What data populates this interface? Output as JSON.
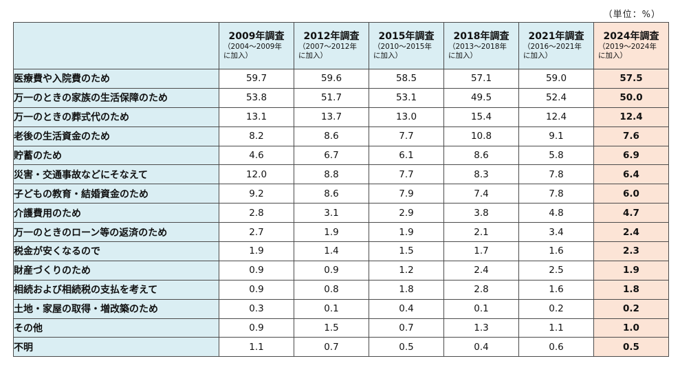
{
  "unit_note": "（単位：%）",
  "columns": [
    {
      "title": "2009年調査",
      "range": "（2004～2009年",
      "join": "に加入）"
    },
    {
      "title": "2012年調査",
      "range": "（2007～2012年",
      "join": "に加入）"
    },
    {
      "title": "2015年調査",
      "range": "（2010～2015年",
      "join": "に加入）"
    },
    {
      "title": "2018年調査",
      "range": "（2013～2018年",
      "join": "に加入）"
    },
    {
      "title": "2021年調査",
      "range": "（2016～2021年",
      "join": "に加入）"
    },
    {
      "title": "2024年調査",
      "range": "（2019～2024年",
      "join": "に加入）"
    }
  ],
  "rows": [
    {
      "label": "医療費や入院費のため",
      "values": [
        "59.7",
        "59.6",
        "58.5",
        "57.1",
        "59.0",
        "57.5"
      ]
    },
    {
      "label": "万一のときの家族の生活保障のため",
      "values": [
        "53.8",
        "51.7",
        "53.1",
        "49.5",
        "52.4",
        "50.0"
      ]
    },
    {
      "label": "万一のときの葬式代のため",
      "values": [
        "13.1",
        "13.7",
        "13.0",
        "15.4",
        "12.4",
        "12.4"
      ]
    },
    {
      "label": "老後の生活資金のため",
      "values": [
        "8.2",
        "8.6",
        "7.7",
        "10.8",
        "9.1",
        "7.6"
      ]
    },
    {
      "label": "貯蓄のため",
      "values": [
        "4.6",
        "6.7",
        "6.1",
        "8.6",
        "5.8",
        "6.9"
      ]
    },
    {
      "label": "災害・交通事故などにそなえて",
      "values": [
        "12.0",
        "8.8",
        "7.7",
        "8.3",
        "7.8",
        "6.4"
      ]
    },
    {
      "label": "子どもの教育・結婚資金のため",
      "values": [
        "9.2",
        "8.6",
        "7.9",
        "7.4",
        "7.8",
        "6.0"
      ]
    },
    {
      "label": "介護費用のため",
      "values": [
        "2.8",
        "3.1",
        "2.9",
        "3.8",
        "4.8",
        "4.7"
      ]
    },
    {
      "label": "万一のときのローン等の返済のため",
      "values": [
        "2.7",
        "1.9",
        "1.9",
        "2.1",
        "3.4",
        "2.4"
      ]
    },
    {
      "label": "税金が安くなるので",
      "values": [
        "1.9",
        "1.4",
        "1.5",
        "1.7",
        "1.6",
        "2.3"
      ]
    },
    {
      "label": "財産づくりのため",
      "values": [
        "0.9",
        "0.9",
        "1.2",
        "2.4",
        "2.5",
        "1.9"
      ]
    },
    {
      "label": "相続および相続税の支払を考えて",
      "values": [
        "0.9",
        "0.8",
        "1.8",
        "2.8",
        "1.6",
        "1.8"
      ]
    },
    {
      "label": "土地・家屋の取得・増改築のため",
      "values": [
        "0.3",
        "0.1",
        "0.4",
        "0.1",
        "0.2",
        "0.2"
      ]
    },
    {
      "label": "その他",
      "values": [
        "0.9",
        "1.5",
        "0.7",
        "1.3",
        "1.1",
        "1.0"
      ]
    },
    {
      "label": "不明",
      "values": [
        "1.1",
        "0.7",
        "0.5",
        "0.4",
        "0.6",
        "0.5"
      ]
    }
  ],
  "colors": {
    "header_bg": "#daeef3",
    "latest_bg": "#fce4d6",
    "border": "#4a4a4a"
  }
}
